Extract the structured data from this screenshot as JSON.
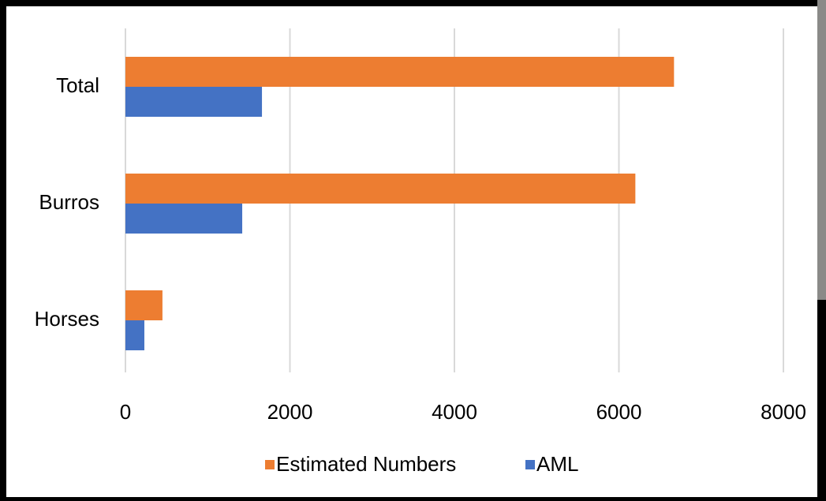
{
  "chart_data": {
    "type": "bar",
    "orientation": "horizontal",
    "categories": [
      "Total",
      "Burros",
      "Horses"
    ],
    "series": [
      {
        "name": "Estimated Numbers",
        "color": "#ed7d31",
        "values": [
          6670,
          6200,
          450
        ]
      },
      {
        "name": "AML",
        "color": "#4472c4",
        "values": [
          1660,
          1420,
          230
        ]
      }
    ],
    "xlim": [
      0,
      8000
    ],
    "xticks": [
      0,
      2000,
      4000,
      6000,
      8000
    ],
    "grid": true,
    "legend": "bottom"
  }
}
